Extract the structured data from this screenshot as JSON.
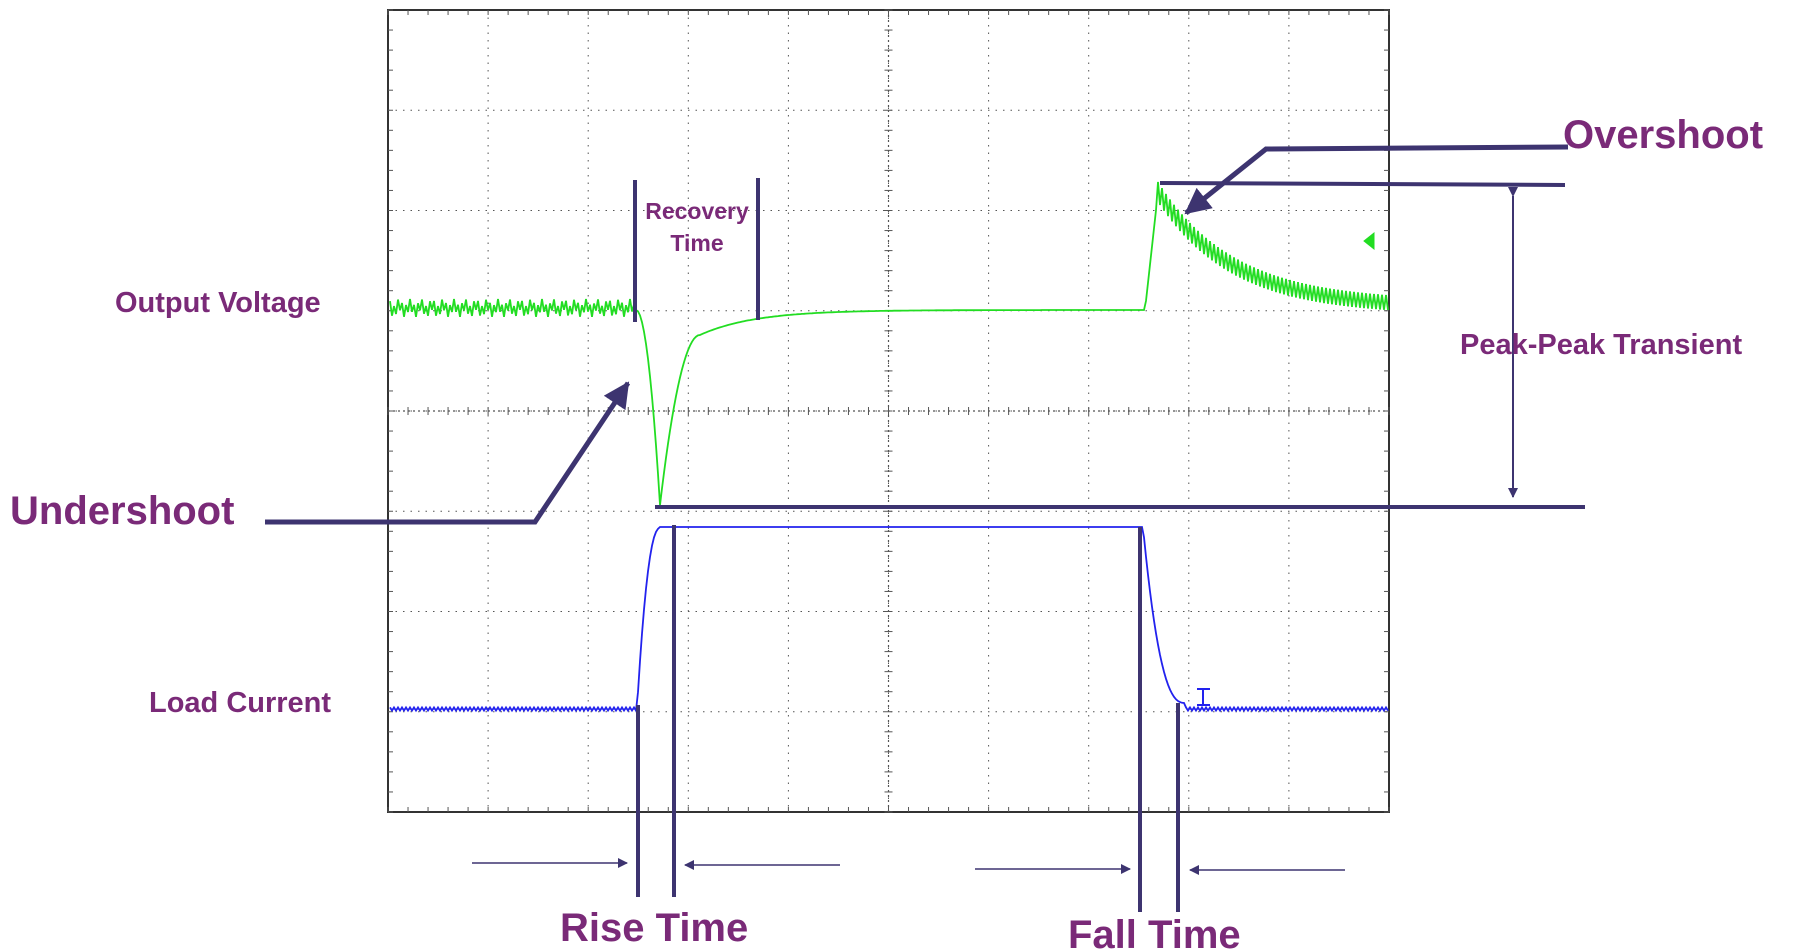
{
  "labels": {
    "output_voltage": "Output Voltage",
    "load_current": "Load Current",
    "recovery_line1": "Recovery",
    "recovery_line2": "Time",
    "undershoot": "Undershoot",
    "overshoot": "Overshoot",
    "peak_peak": "Peak-Peak Transient",
    "rise_time": "Rise Time",
    "fall_time": "Fall Time"
  },
  "colors": {
    "label": "#7a2a78",
    "annotation": "#3d3470",
    "voltage_trace": "#22dd22",
    "current_trace": "#2222ee",
    "grid": "#555555"
  },
  "graticule": {
    "divisions_x": 10,
    "divisions_y": 8,
    "minor_ticks_per_division": 5
  }
}
